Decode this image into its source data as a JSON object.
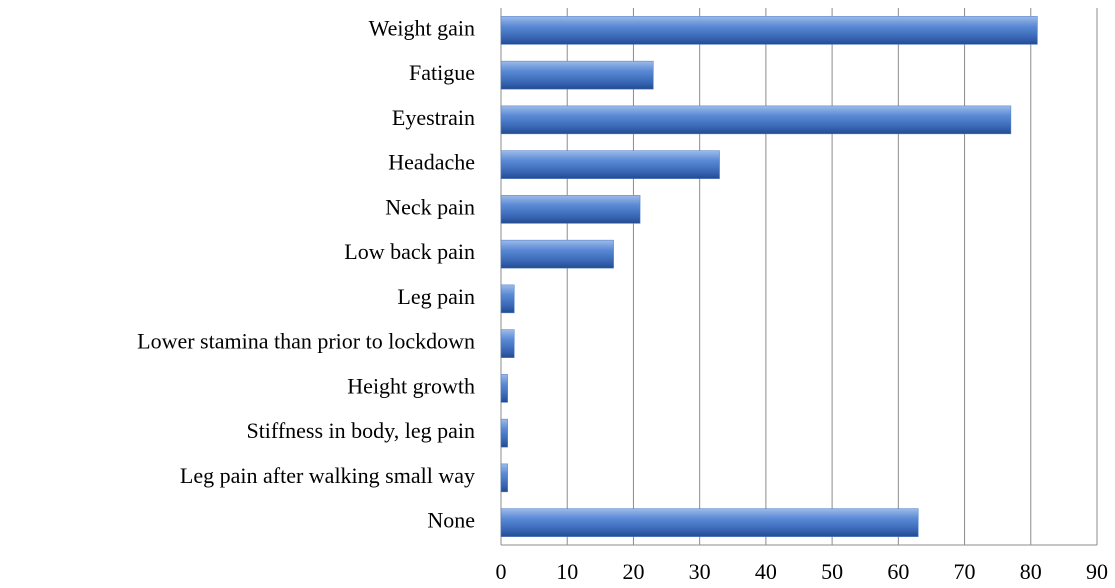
{
  "chart_data": {
    "type": "barh",
    "categories": [
      "Weight gain",
      "Fatigue",
      "Eyestrain",
      "Headache",
      "Neck pain",
      "Low back pain",
      "Leg pain",
      "Lower stamina than prior to lockdown",
      "Height growth",
      "Stiffness in body, leg pain",
      "Leg pain after walking small way",
      "None"
    ],
    "values": [
      81,
      23,
      77,
      33,
      21,
      17,
      2,
      2,
      1,
      1,
      1,
      63
    ],
    "color": "#4a7bc8",
    "xlim": [
      0,
      90
    ],
    "xticks": [
      0,
      10,
      20,
      30,
      40,
      50,
      60,
      70,
      80,
      90
    ],
    "grid": true
  }
}
